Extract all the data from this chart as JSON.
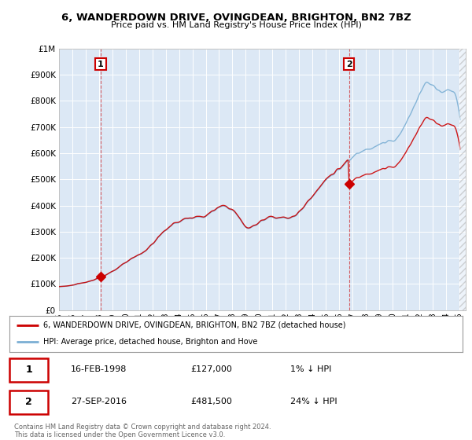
{
  "title": "6, WANDERDOWN DRIVE, OVINGDEAN, BRIGHTON, BN2 7BZ",
  "subtitle": "Price paid vs. HM Land Registry's House Price Index (HPI)",
  "legend_line1": "6, WANDERDOWN DRIVE, OVINGDEAN, BRIGHTON, BN2 7BZ (detached house)",
  "legend_line2": "HPI: Average price, detached house, Brighton and Hove",
  "annotation1_date": "16-FEB-1998",
  "annotation1_price": "£127,000",
  "annotation1_hpi": "1% ↓ HPI",
  "annotation1_year": 1998.12,
  "annotation1_value": 127000,
  "annotation2_date": "27-SEP-2016",
  "annotation2_price": "£481,500",
  "annotation2_hpi": "24% ↓ HPI",
  "annotation2_year": 2016.74,
  "annotation2_value": 481500,
  "copyright": "Contains HM Land Registry data © Crown copyright and database right 2024.\nThis data is licensed under the Open Government Licence v3.0.",
  "red_color": "#cc0000",
  "blue_color": "#7bafd4",
  "bg_color": "#ffffff",
  "chart_bg_color": "#dce8f5",
  "grid_color": "#ffffff",
  "ylim_min": 0,
  "ylim_max": 1000000,
  "sold_years": [
    1998.12,
    2016.74
  ],
  "sold_values": [
    127000,
    481500
  ]
}
